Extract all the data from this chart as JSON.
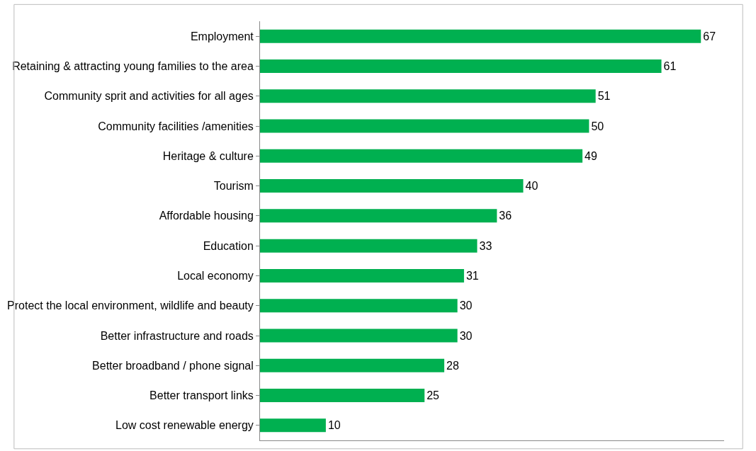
{
  "chart_data": {
    "type": "bar",
    "orientation": "horizontal",
    "data_labels": true,
    "legend": false,
    "tick_labels": "y",
    "color": "#00b050",
    "categories": [
      "Employment",
      "Retaining & attracting young families to the area",
      "Community sprit and activities for all ages",
      "Community facilities /amenities",
      "Heritage & culture",
      "Tourism",
      "Affordable housing",
      "Education",
      "Local economy",
      "Protect the local environment, wildlife and beauty",
      "Better infrastructure and roads",
      "Better broadband / phone signal",
      "Better transport links",
      "Low cost renewable energy"
    ],
    "values": [
      67,
      61,
      51,
      50,
      49,
      40,
      36,
      33,
      31,
      30,
      30,
      28,
      25,
      10
    ]
  }
}
